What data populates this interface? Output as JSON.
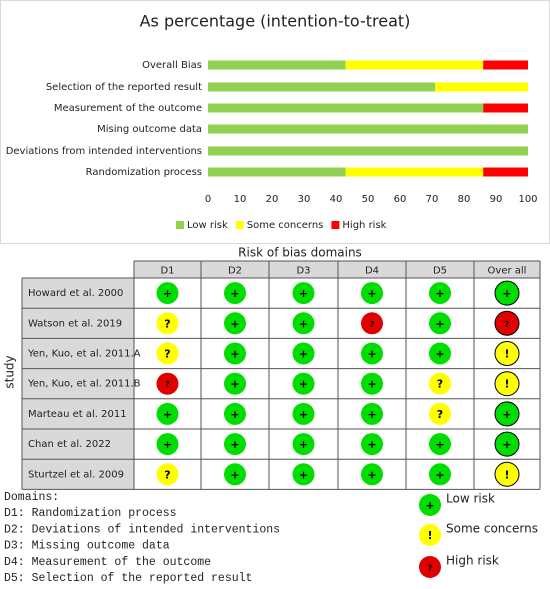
{
  "chart_data": {
    "type": "stacked-bar-horizontal",
    "title": "As percentage (intention-to-treat)",
    "categories": [
      "Overall Bias",
      "Selection of the reported result",
      "Measurement of the outcome",
      "Mising outcome data",
      "Deviations from intended interventions",
      "Randomization process"
    ],
    "series": [
      {
        "name": "Low risk",
        "color": "#92d050",
        "values": [
          43,
          71,
          86,
          100,
          100,
          43
        ]
      },
      {
        "name": "Some concerns",
        "color": "#ffff00",
        "values": [
          43,
          29,
          0,
          0,
          0,
          43
        ]
      },
      {
        "name": "High risk",
        "color": "#ff0000",
        "values": [
          14,
          0,
          14,
          0,
          0,
          14
        ]
      }
    ],
    "xlim": [
      0,
      100
    ],
    "xticks": [
      0,
      10,
      20,
      30,
      40,
      50,
      60,
      70,
      80,
      90,
      100
    ],
    "grid": false,
    "legend": "bottom"
  },
  "risk_table": {
    "title": "Risk of bias domains",
    "side_label": "study",
    "columns": [
      "D1",
      "D2",
      "D3",
      "D4",
      "D5",
      "Over all"
    ],
    "rows": [
      {
        "study": "Howard et al. 2000",
        "cells": [
          {
            "symbol": "+",
            "color": "#00dd00"
          },
          {
            "symbol": "+",
            "color": "#00dd00"
          },
          {
            "symbol": "+",
            "color": "#00dd00"
          },
          {
            "symbol": "+",
            "color": "#00dd00"
          },
          {
            "symbol": "+",
            "color": "#00dd00"
          },
          {
            "symbol": "+",
            "color": "#00dd00"
          }
        ]
      },
      {
        "study": "Watson et al. 2019",
        "cells": [
          {
            "symbol": "?",
            "color": "#ffff00"
          },
          {
            "symbol": "+",
            "color": "#00dd00"
          },
          {
            "symbol": "+",
            "color": "#00dd00"
          },
          {
            "symbol": "?",
            "color": "#e00000"
          },
          {
            "symbol": "+",
            "color": "#00dd00"
          },
          {
            "symbol": "?",
            "color": "#e00000"
          }
        ]
      },
      {
        "study": "Yen, Kuo, et al. 2011.A",
        "cells": [
          {
            "symbol": "?",
            "color": "#ffff00"
          },
          {
            "symbol": "+",
            "color": "#00dd00"
          },
          {
            "symbol": "+",
            "color": "#00dd00"
          },
          {
            "symbol": "+",
            "color": "#00dd00"
          },
          {
            "symbol": "+",
            "color": "#00dd00"
          },
          {
            "symbol": "!",
            "color": "#ffff00"
          }
        ]
      },
      {
        "study": "Yen, Kuo, et al. 2011.B",
        "cells": [
          {
            "symbol": "?",
            "color": "#e00000"
          },
          {
            "symbol": "+",
            "color": "#00dd00"
          },
          {
            "symbol": "+",
            "color": "#00dd00"
          },
          {
            "symbol": "+",
            "color": "#00dd00"
          },
          {
            "symbol": "?",
            "color": "#ffff00"
          },
          {
            "symbol": "!",
            "color": "#ffff00"
          }
        ]
      },
      {
        "study": "Marteau et al. 2011",
        "cells": [
          {
            "symbol": "+",
            "color": "#00dd00"
          },
          {
            "symbol": "+",
            "color": "#00dd00"
          },
          {
            "symbol": "+",
            "color": "#00dd00"
          },
          {
            "symbol": "+",
            "color": "#00dd00"
          },
          {
            "symbol": "?",
            "color": "#ffff00"
          },
          {
            "symbol": "+",
            "color": "#00dd00"
          }
        ]
      },
      {
        "study": "Chan et al. 2022",
        "cells": [
          {
            "symbol": "+",
            "color": "#00dd00"
          },
          {
            "symbol": "+",
            "color": "#00dd00"
          },
          {
            "symbol": "+",
            "color": "#00dd00"
          },
          {
            "symbol": "+",
            "color": "#00dd00"
          },
          {
            "symbol": "+",
            "color": "#00dd00"
          },
          {
            "symbol": "+",
            "color": "#00dd00"
          }
        ]
      },
      {
        "study": "Sturtzel et al. 2009",
        "cells": [
          {
            "symbol": "?",
            "color": "#ffff00"
          },
          {
            "symbol": "+",
            "color": "#00dd00"
          },
          {
            "symbol": "+",
            "color": "#00dd00"
          },
          {
            "symbol": "+",
            "color": "#00dd00"
          },
          {
            "symbol": "+",
            "color": "#00dd00"
          },
          {
            "symbol": "!",
            "color": "#ffff00"
          }
        ]
      }
    ],
    "legend": [
      {
        "symbol": "+",
        "color": "#00dd00",
        "label": "Low risk"
      },
      {
        "symbol": "!",
        "color": "#ffff00",
        "label": "Some concerns"
      },
      {
        "symbol": "?",
        "color": "#e00000",
        "label": "High risk"
      }
    ]
  },
  "domains": {
    "heading": "Domains:",
    "items": [
      "D1: Randomization process",
      "D2: Deviations of intended interventions",
      "D3: Missing outcome data",
      "D4: Measurement of the outcome",
      "D5: Selection of the reported result"
    ]
  }
}
